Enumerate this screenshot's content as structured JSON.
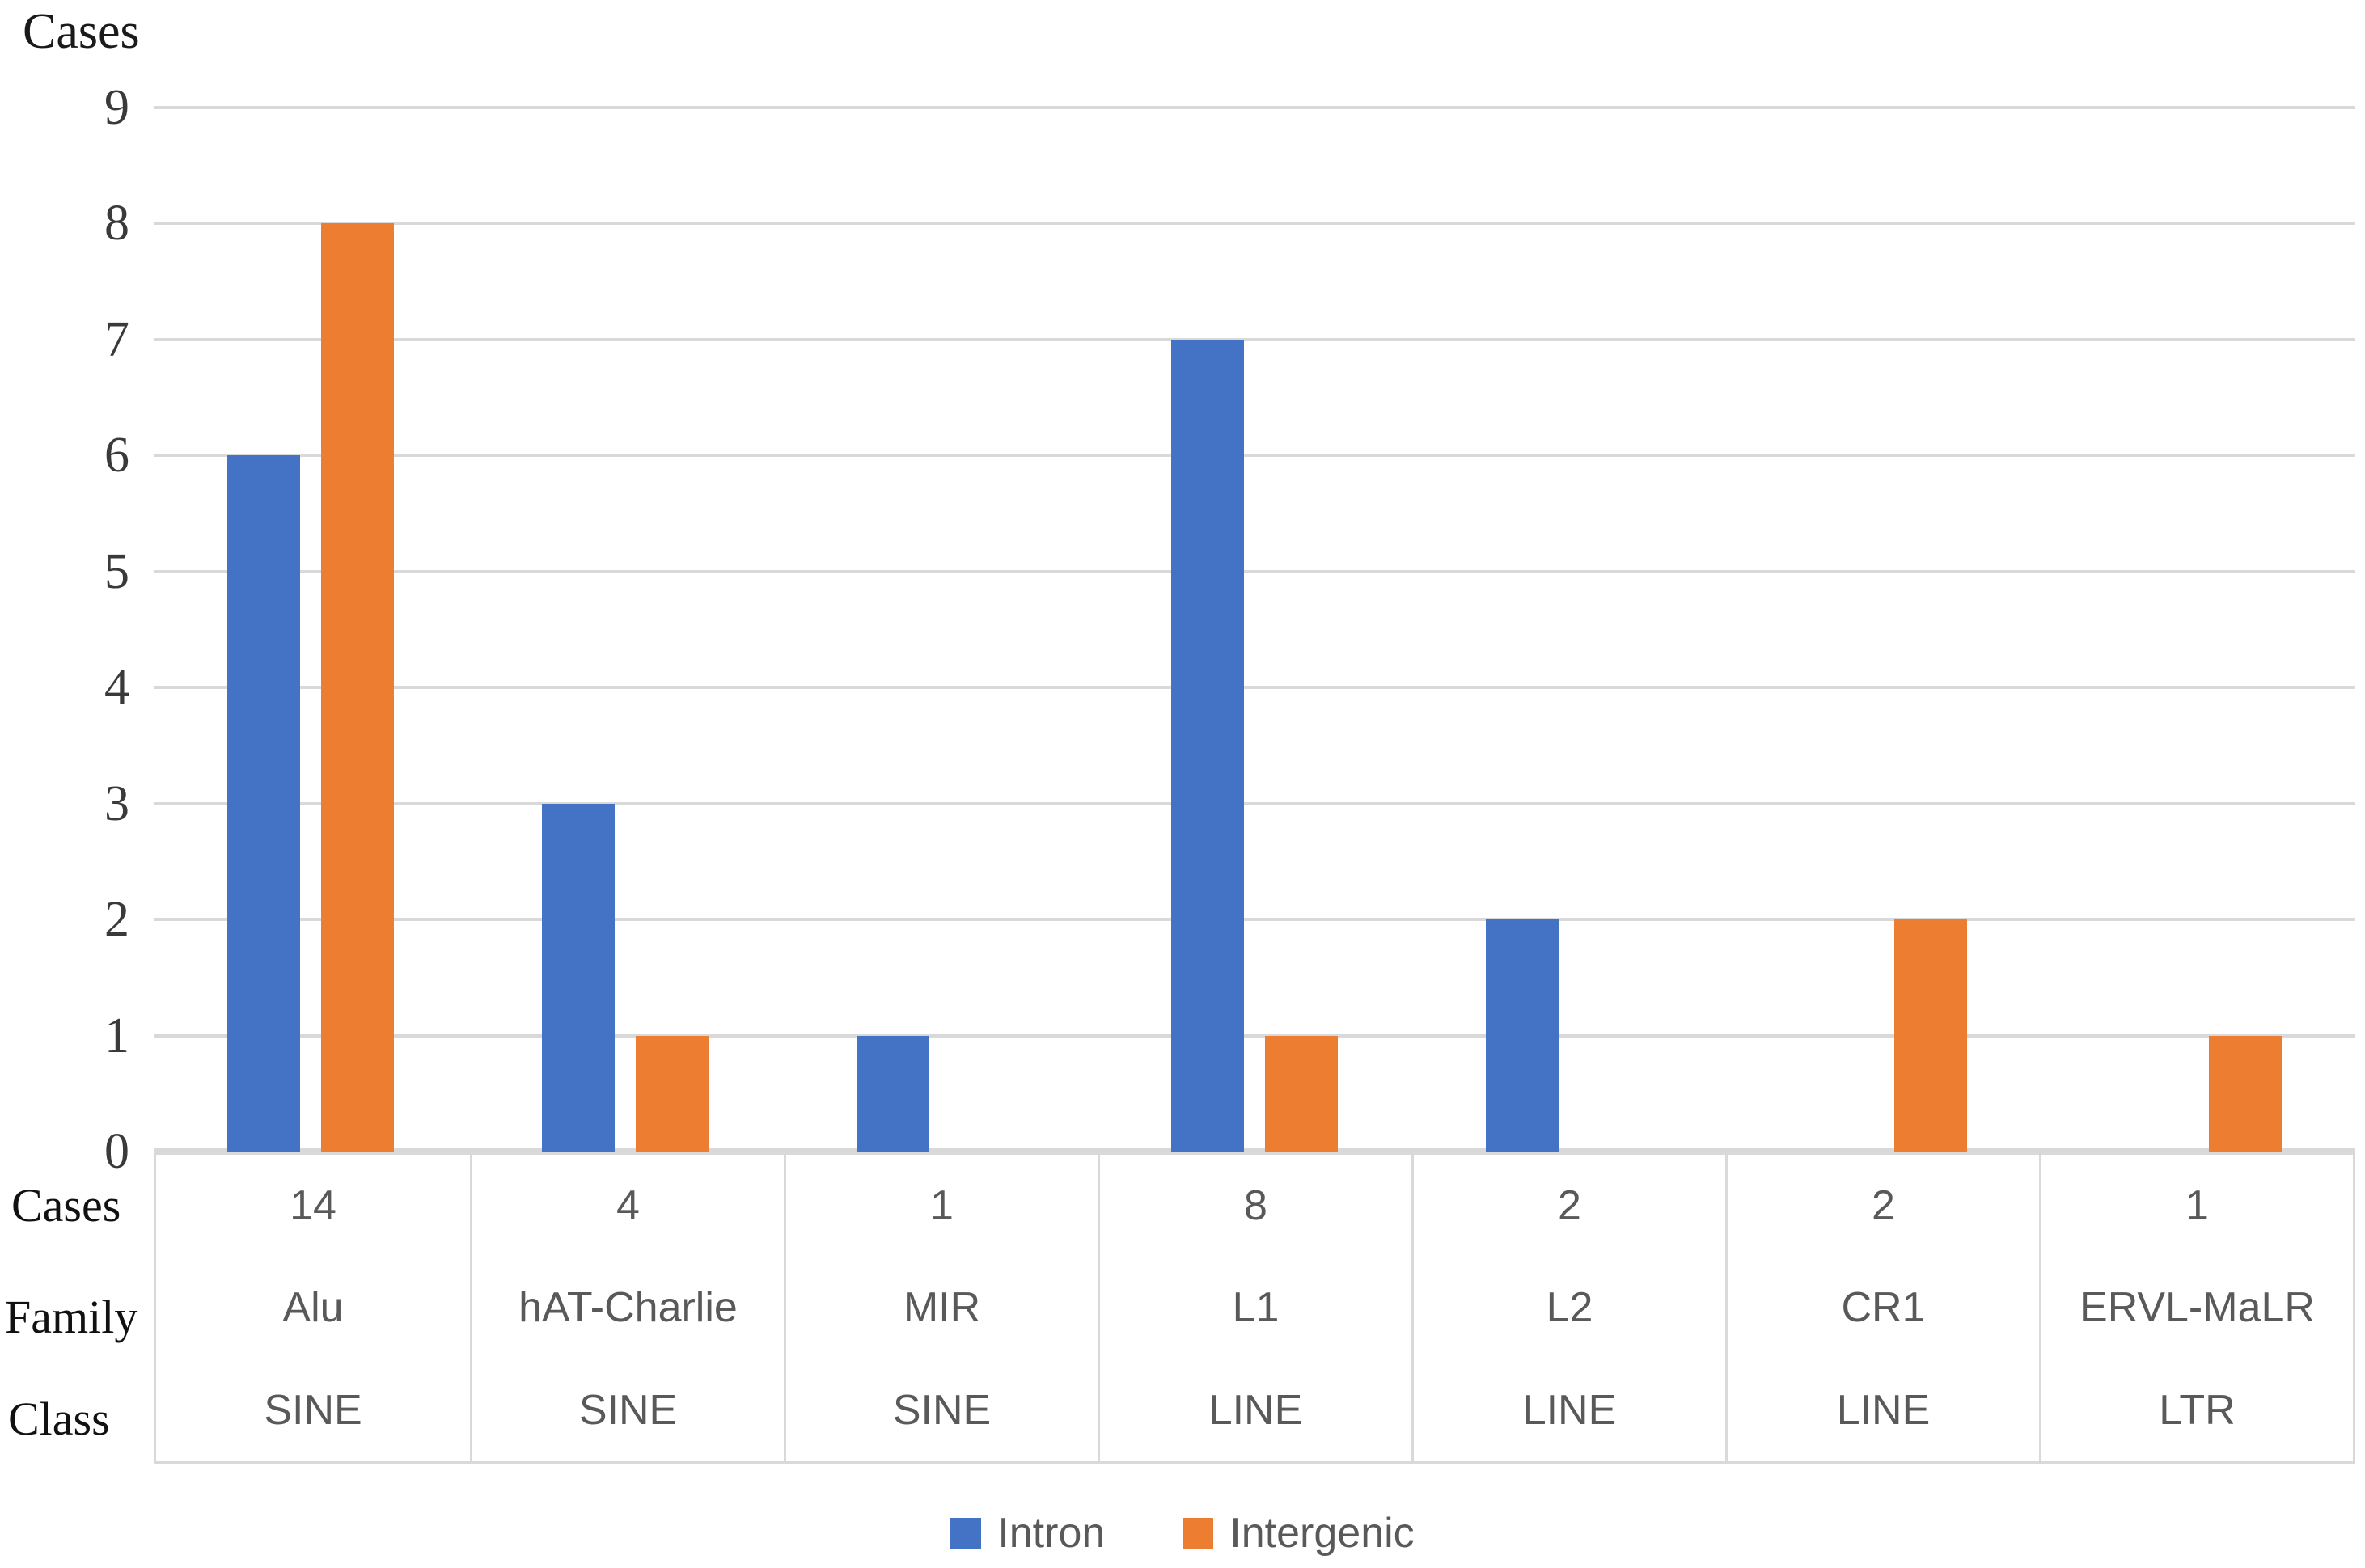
{
  "figure": {
    "y_axis_title": "Cases"
  },
  "chart_data": {
    "type": "bar",
    "title": "",
    "xlabel": "",
    "ylabel": "Cases",
    "categories": [
      "Alu",
      "hAT-Charlie",
      "MIR",
      "L1",
      "L2",
      "CR1",
      "ERVL-MaLR"
    ],
    "series": [
      {
        "name": "Intron",
        "color": "#4472C4",
        "values": [
          6,
          3,
          1,
          7,
          2,
          0,
          0
        ]
      },
      {
        "name": "Intergenic",
        "color": "#ED7D31",
        "values": [
          8,
          1,
          0,
          1,
          0,
          2,
          1
        ]
      }
    ],
    "ylim": [
      0,
      9
    ],
    "yticks": [
      0,
      1,
      2,
      3,
      4,
      5,
      6,
      7,
      8,
      9
    ],
    "grid": "horizontal",
    "legend_position": "bottom",
    "legend": [
      "Intron",
      "Intergenic"
    ],
    "colors": {
      "gridline": "#D9D9D9",
      "axis_line": "#D9D9D9",
      "table_border": "#D9D9D9",
      "value_text": "#595959",
      "label_text": "#1A1A1A"
    },
    "table": {
      "row_labels": [
        "Cases",
        "Family",
        "Class"
      ],
      "columns": [
        {
          "cases": "14",
          "family": "Alu",
          "class": "SINE"
        },
        {
          "cases": "4",
          "family": "hAT-Charlie",
          "class": "SINE"
        },
        {
          "cases": "1",
          "family": "MIR",
          "class": "SINE"
        },
        {
          "cases": "8",
          "family": "L1",
          "class": "LINE"
        },
        {
          "cases": "2",
          "family": "L2",
          "class": "LINE"
        },
        {
          "cases": "2",
          "family": "CR1",
          "class": "LINE"
        },
        {
          "cases": "1",
          "family": "ERVL-MaLR",
          "class": "LTR"
        }
      ]
    }
  }
}
